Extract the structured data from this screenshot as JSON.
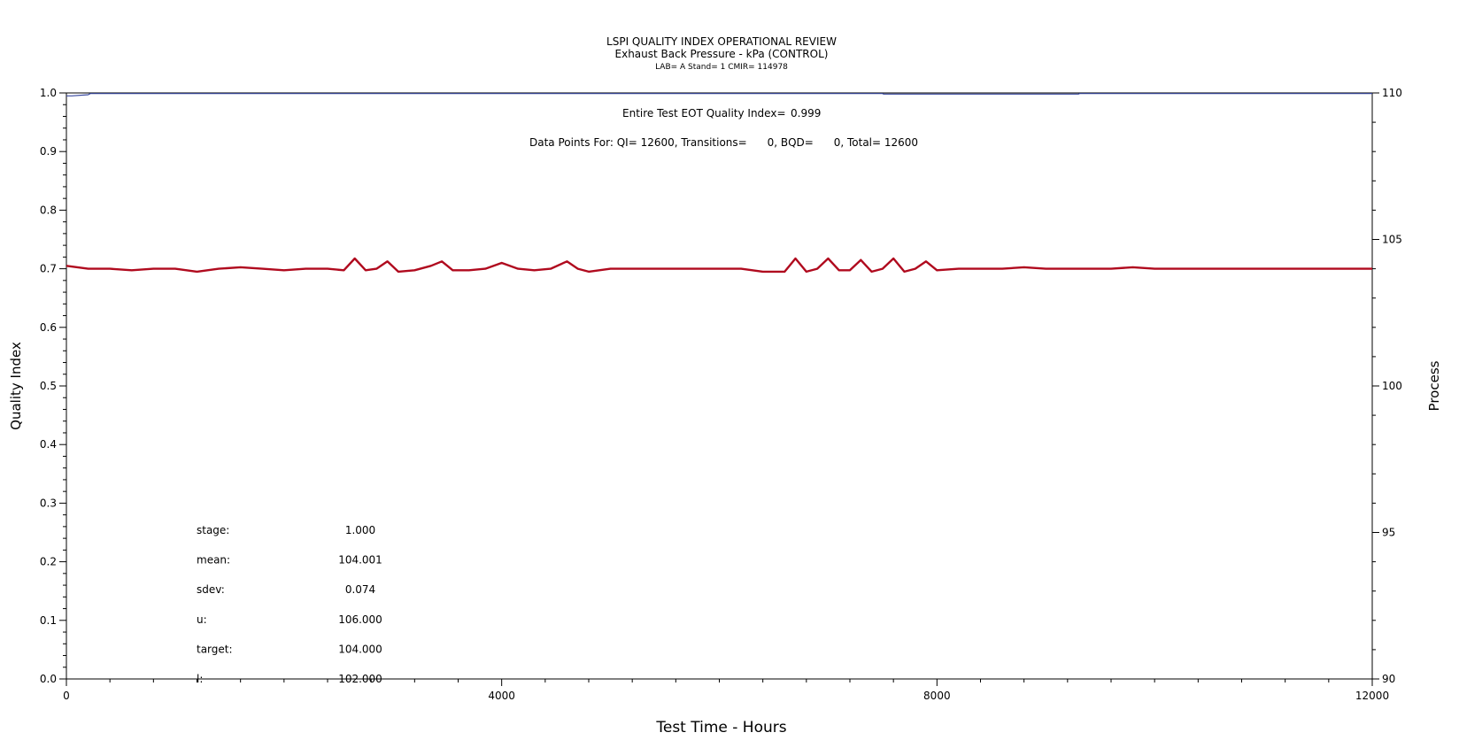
{
  "chart_data": {
    "type": "line",
    "title": "LSPI QUALITY INDEX OPERATIONAL REVIEW",
    "subtitle": "Exhaust Back Pressure - kPa (CONTROL)",
    "subtitle2": "LAB= A Stand= 1 CMIR= 114978",
    "xlabel": "Test Time - Hours",
    "ylabel": "Quality Index",
    "y2label": "Process",
    "xlim": [
      0,
      12000
    ],
    "ylim": [
      0,
      1
    ],
    "y2lim": [
      90,
      110
    ],
    "x_ticks": [
      0,
      4000,
      8000,
      12000
    ],
    "y_ticks": [
      0.0,
      0.1,
      0.2,
      0.3,
      0.4,
      0.5,
      0.6,
      0.7,
      0.8,
      0.9,
      1.0
    ],
    "y2_ticks": [
      90,
      95,
      100,
      105,
      110
    ],
    "x_tick_labels": [
      "0",
      "4000",
      "8000",
      "12000"
    ],
    "y_tick_labels": [
      "0.0",
      "0.1",
      "0.2",
      "0.3",
      "0.4",
      "0.5",
      "0.6",
      "0.7",
      "0.8",
      "0.9",
      "1.0"
    ],
    "y2_tick_labels": [
      "90",
      "95",
      "100",
      "105",
      "110"
    ],
    "annotations": {
      "eot_label": "Entire Test EOT Quality Index=",
      "eot_value": "0.999",
      "points_line": "Data Points For: QI= 12600, Transitions=      0, BQD=      0, Total= 12600"
    },
    "stats": [
      {
        "label": "stage:",
        "value": "1.000"
      },
      {
        "label": "mean:",
        "value": "104.001"
      },
      {
        "label": "sdev:",
        "value": "0.074"
      },
      {
        "label": "u:",
        "value": "106.000"
      },
      {
        "label": "target:",
        "value": "104.000"
      },
      {
        "label": "l:",
        "value": "102.000"
      }
    ],
    "series": [
      {
        "axis": "left",
        "color": "#3a4aa0",
        "x": [
          0,
          50,
          200,
          220,
          7500,
          7510,
          9300,
          9310,
          12000
        ],
        "y": [
          0.995,
          0.995,
          0.997,
          0.999,
          0.999,
          0.998,
          0.998,
          0.999,
          0.999
        ]
      },
      {
        "axis": "right",
        "color": "#b00a1e",
        "x": [
          0,
          200,
          400,
          600,
          800,
          1000,
          1200,
          1400,
          1600,
          1800,
          2000,
          2200,
          2400,
          2550,
          2650,
          2750,
          2850,
          2950,
          3050,
          3200,
          3350,
          3450,
          3550,
          3700,
          3850,
          4000,
          4150,
          4300,
          4450,
          4600,
          4700,
          4800,
          5000,
          5200,
          5400,
          5600,
          5800,
          6000,
          6200,
          6400,
          6600,
          6700,
          6800,
          6900,
          7000,
          7100,
          7200,
          7300,
          7400,
          7500,
          7600,
          7700,
          7800,
          7900,
          8000,
          8200,
          8400,
          8600,
          8800,
          9000,
          9200,
          9400,
          9600,
          9800,
          10000,
          10200,
          10400,
          10600,
          10800,
          11000,
          11200,
          11400,
          11600,
          11800,
          12000
        ],
        "y": [
          104.1,
          104.0,
          104.0,
          103.95,
          104.0,
          104.0,
          103.9,
          104.0,
          104.05,
          104.0,
          103.95,
          104.0,
          104.0,
          103.95,
          104.35,
          103.95,
          104.0,
          104.25,
          103.9,
          103.95,
          104.1,
          104.25,
          103.95,
          103.95,
          104.0,
          104.2,
          104.0,
          103.95,
          104.0,
          104.25,
          104.0,
          103.9,
          104.0,
          104.0,
          104.0,
          104.0,
          104.0,
          104.0,
          104.0,
          103.9,
          103.9,
          104.35,
          103.9,
          104.0,
          104.35,
          103.95,
          103.95,
          104.3,
          103.9,
          104.0,
          104.35,
          103.9,
          104.0,
          104.25,
          103.95,
          104.0,
          104.0,
          104.0,
          104.05,
          104.0,
          104.0,
          104.0,
          104.0,
          104.05,
          104.0,
          104.0,
          104.0,
          104.0,
          104.0,
          104.0,
          104.0,
          104.0,
          104.0,
          104.0,
          104.0
        ]
      }
    ]
  }
}
